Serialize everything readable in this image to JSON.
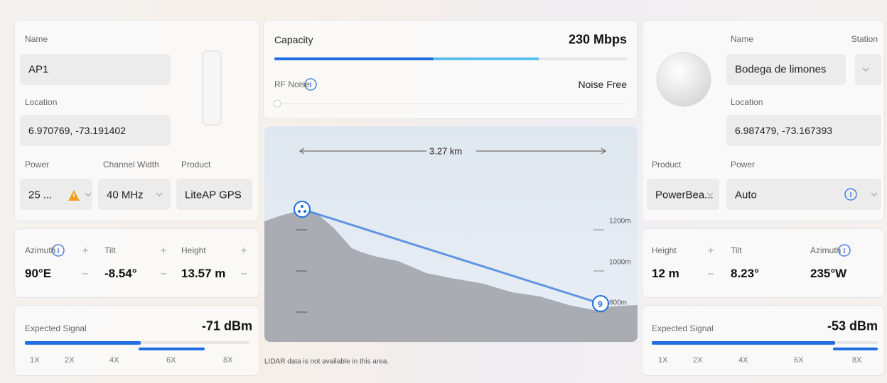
{
  "local_device": {
    "name_label": "Name",
    "name": "AP1",
    "location_label": "Location",
    "location": "6.970769, -73.191402",
    "power_label": "Power",
    "power": "25 ...",
    "channel_width_label": "Channel Width",
    "channel_width": "40 MHz",
    "product_label": "Product",
    "product": "LiteAP GPS",
    "azimuth_label": "Azimuth",
    "azimuth": "90°E",
    "tilt_label": "Tilt",
    "tilt": "-8.54°",
    "height_label": "Height",
    "height": "13.57 m",
    "signal_label": "Expected Signal",
    "signal": "-71 dBm",
    "scale": [
      "1X",
      "2X",
      "4X",
      "6X",
      "8X"
    ]
  },
  "link": {
    "capacity_label": "Capacity",
    "capacity": "230 Mbps",
    "rf_noise_label": "RF Noise",
    "rf_noise": "Noise Free",
    "distance": "3.27 km",
    "elevations": [
      "1200m",
      "1000m",
      "800m"
    ],
    "remote_marker": "9",
    "lidar_note": "LIDAR data is not available in this area."
  },
  "remote_device": {
    "name_label": "Name",
    "mode": "Station",
    "name": "Bodega de limones",
    "location_label": "Location",
    "location": "6.987479, -73.167393",
    "product_label": "Product",
    "product": "PowerBea...",
    "power_label": "Power",
    "power": "Auto",
    "height_label": "Height",
    "height": "12 m",
    "tilt_label": "Tilt",
    "tilt": "8.23°",
    "azimuth_label": "Azimuth",
    "azimuth": "235°W",
    "signal_label": "Expected Signal",
    "signal": "-53 dBm",
    "scale": [
      "1X",
      "2X",
      "4X",
      "6X",
      "8X"
    ]
  }
}
